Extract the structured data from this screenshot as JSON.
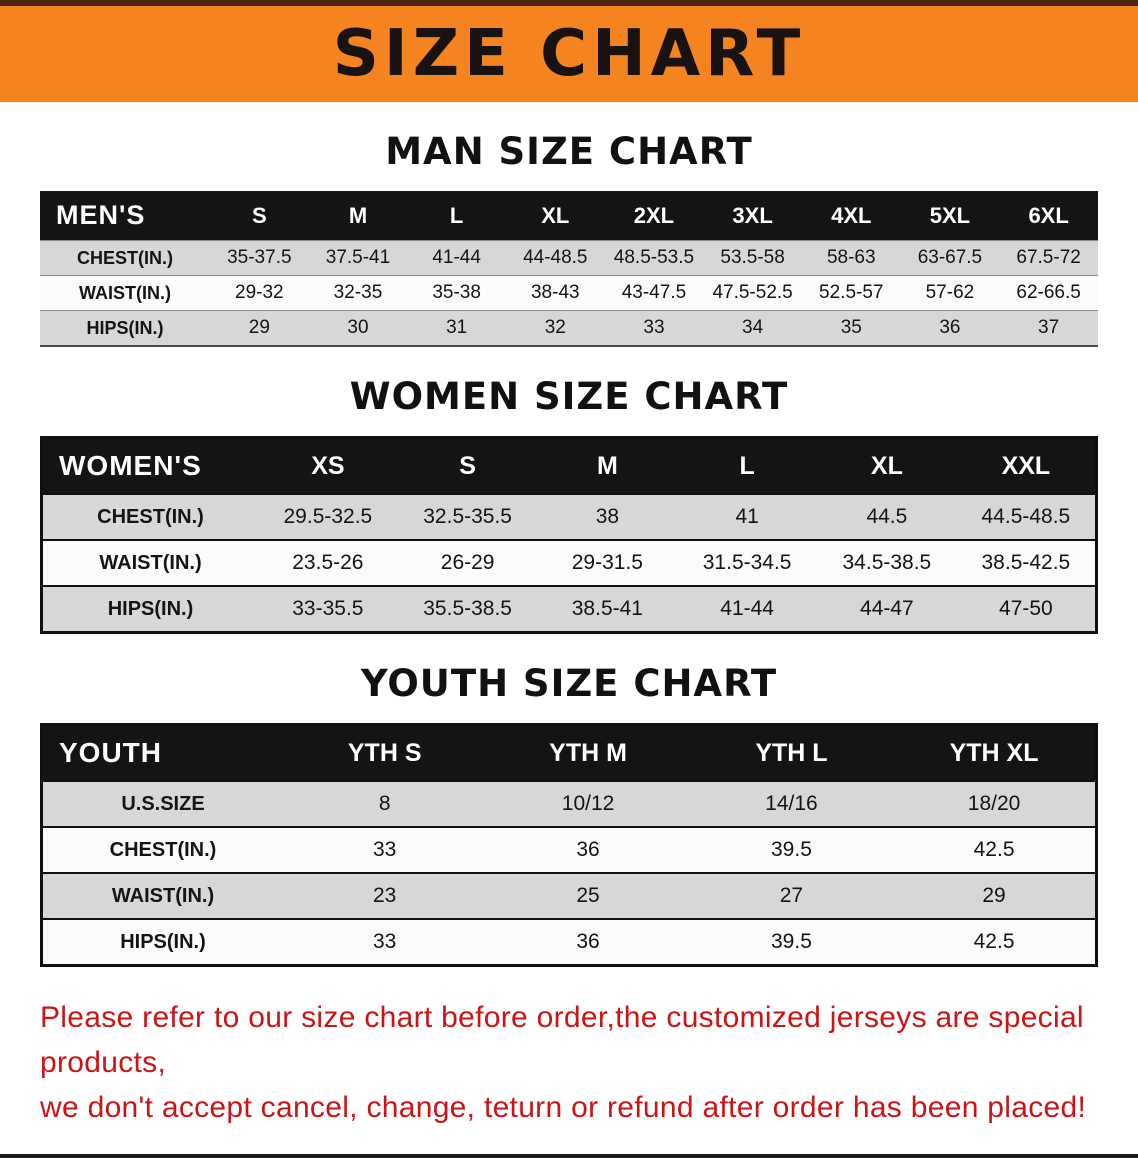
{
  "banner": {
    "title": "SIZE CHART"
  },
  "colors": {
    "banner_bg": "#f5831f",
    "table_header_bg": "#141414",
    "row_stripe": "#d7d7d7",
    "notice_text": "#cc1414"
  },
  "sections": [
    {
      "id": "men",
      "title": "MAN SIZE CHART",
      "header": [
        "MEN'S",
        "S",
        "M",
        "L",
        "XL",
        "2XL",
        "3XL",
        "4XL",
        "5XL",
        "6XL"
      ],
      "rows": [
        {
          "label": "CHEST(IN.)",
          "values": [
            "35-37.5",
            "37.5-41",
            "41-44",
            "44-48.5",
            "48.5-53.5",
            "53.5-58",
            "58-63",
            "63-67.5",
            "67.5-72"
          ]
        },
        {
          "label": "WAIST(IN.)",
          "values": [
            "29-32",
            "32-35",
            "35-38",
            "38-43",
            "43-47.5",
            "47.5-52.5",
            "52.5-57",
            "57-62",
            "62-66.5"
          ]
        },
        {
          "label": "HIPS(IN.)",
          "values": [
            "29",
            "30",
            "31",
            "32",
            "33",
            "34",
            "35",
            "36",
            "37"
          ]
        }
      ]
    },
    {
      "id": "women",
      "title": "WOMEN SIZE CHART",
      "header": [
        "WOMEN'S",
        "XS",
        "S",
        "M",
        "L",
        "XL",
        "XXL"
      ],
      "rows": [
        {
          "label": "CHEST(IN.)",
          "values": [
            "29.5-32.5",
            "32.5-35.5",
            "38",
            "41",
            "44.5",
            "44.5-48.5"
          ]
        },
        {
          "label": "WAIST(IN.)",
          "values": [
            "23.5-26",
            "26-29",
            "29-31.5",
            "31.5-34.5",
            "34.5-38.5",
            "38.5-42.5"
          ]
        },
        {
          "label": "HIPS(IN.)",
          "values": [
            "33-35.5",
            "35.5-38.5",
            "38.5-41",
            "41-44",
            "44-47",
            "47-50"
          ]
        }
      ]
    },
    {
      "id": "youth",
      "title": "YOUTH SIZE CHART",
      "header": [
        "YOUTH",
        "YTH S",
        "YTH M",
        "YTH L",
        "YTH XL"
      ],
      "rows": [
        {
          "label": "U.S.SIZE",
          "values": [
            "8",
            "10/12",
            "14/16",
            "18/20"
          ]
        },
        {
          "label": "CHEST(IN.)",
          "values": [
            "33",
            "36",
            "39.5",
            "42.5"
          ]
        },
        {
          "label": "WAIST(IN.)",
          "values": [
            "23",
            "25",
            "27",
            "29"
          ]
        },
        {
          "label": "HIPS(IN.)",
          "values": [
            "33",
            "36",
            "39.5",
            "42.5"
          ]
        }
      ]
    }
  ],
  "footer": {
    "line1": "Please refer to our size chart before order,the customized jerseys are special products,",
    "line2": "we don't accept cancel, change, teturn or refund after order has been placed!"
  }
}
